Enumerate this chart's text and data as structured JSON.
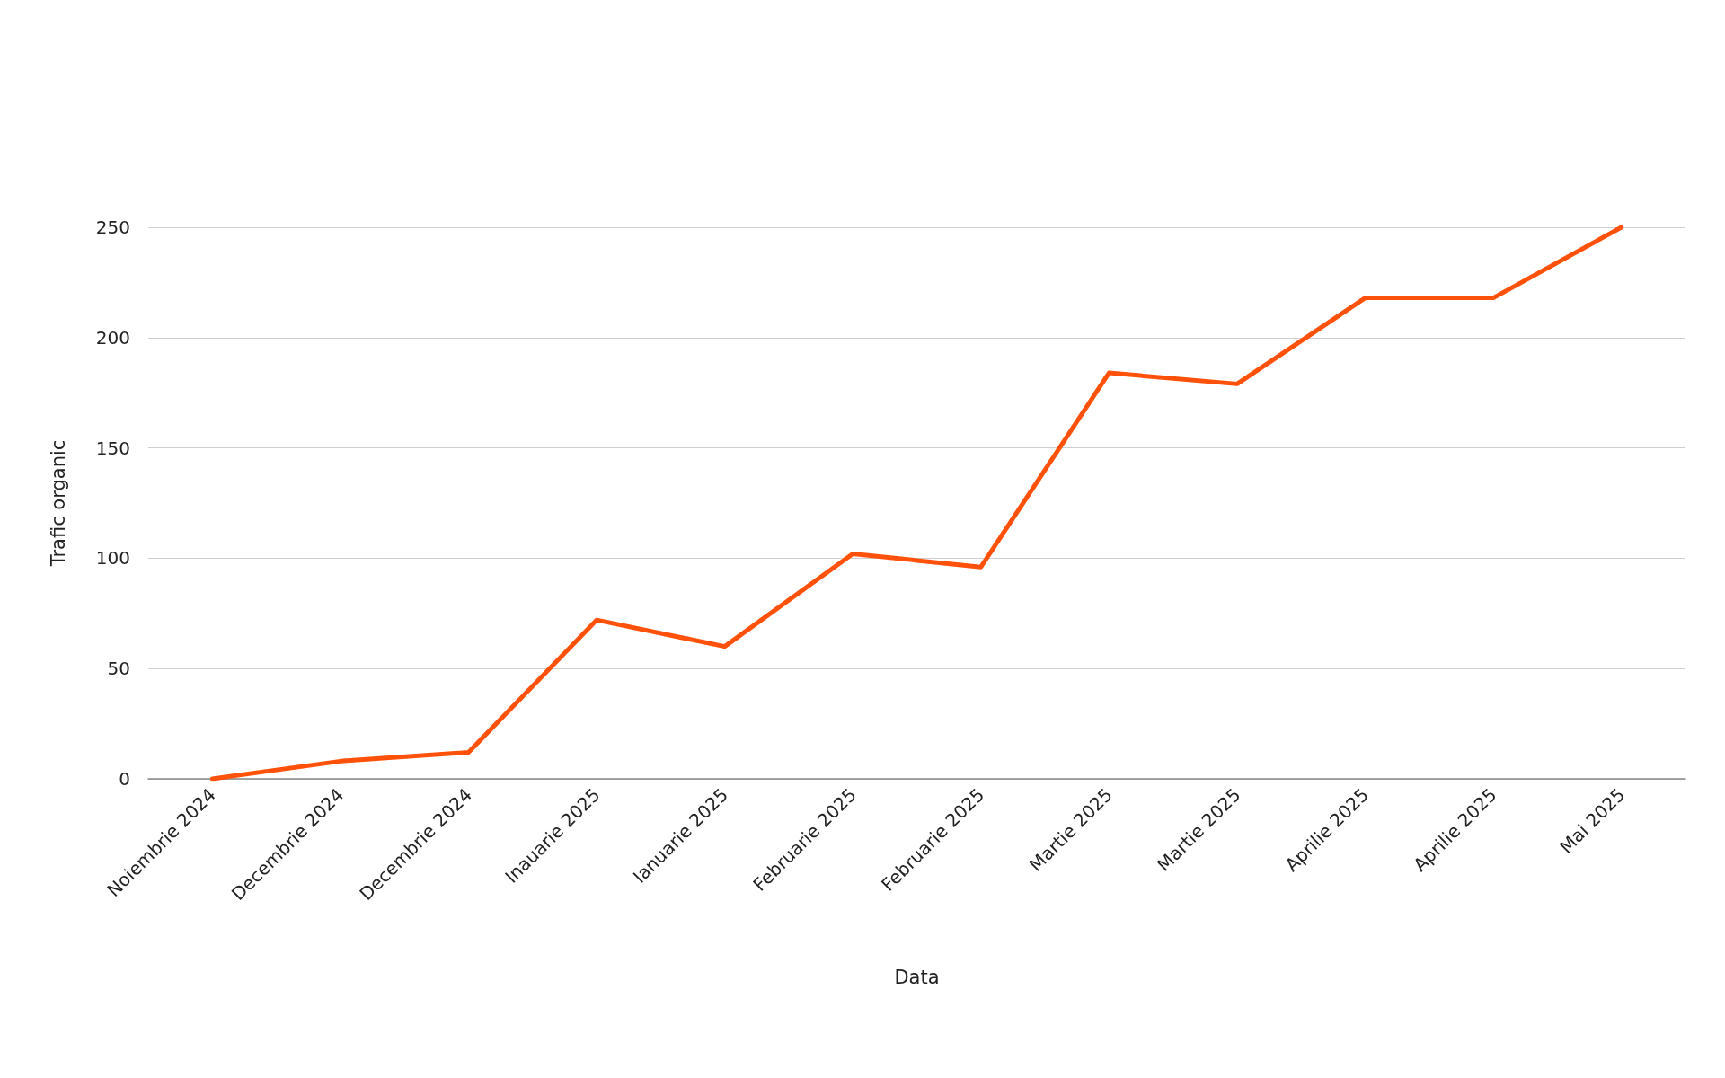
{
  "chart_data": {
    "type": "line",
    "xlabel": "Data",
    "ylabel": "Trafic organic",
    "categories": [
      "Noiembrie 2024",
      "Decembrie 2024",
      "Decembrie 2024",
      "Inauarie 2025",
      "Ianuarie 2025",
      "Februarie 2025",
      "Februarie 2025",
      "Martie 2025",
      "Martie 2025",
      "Aprilie 2025",
      "Aprilie 2025",
      "Mai 2025"
    ],
    "series": [
      {
        "color": "#ff5109",
        "values": [
          0,
          8,
          12,
          72,
          60,
          102,
          96,
          184,
          179,
          218,
          218,
          250
        ]
      }
    ],
    "ylim": [
      0,
      250
    ],
    "yticks": [
      0,
      50,
      100,
      150,
      200,
      250
    ],
    "grid": "y",
    "marker": "none",
    "line_style": "solid"
  }
}
